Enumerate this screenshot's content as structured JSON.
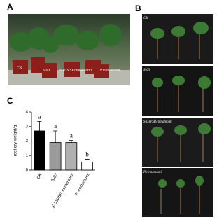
{
  "panels": {
    "a": {
      "label": "A",
      "captions": [
        "CK",
        "S-03",
        "S-03VSP.cinnamomi",
        "P.cinnamomi."
      ]
    },
    "b": {
      "label": "B",
      "captions": [
        "CK",
        "S-03",
        "S-03VSP.cinnamomi",
        "P.cinnamomi"
      ]
    },
    "c": {
      "label": "C"
    }
  },
  "chart_data": {
    "type": "bar",
    "y_label": "root dry weight/g",
    "categories": [
      "CK",
      "S-03",
      "S-03VSP. cinnamomi",
      "P. cinnamomi"
    ],
    "values": [
      2.7,
      1.9,
      1.9,
      0.55
    ],
    "errors": [
      0.65,
      0.8,
      0.15,
      0.2
    ],
    "annotations": [
      "a",
      "a",
      "a",
      "b"
    ],
    "colors": [
      "#000000",
      "#9a9a9a",
      "#b0b0b0",
      "#ffffff"
    ],
    "ylim": [
      0,
      4
    ],
    "yticks": [
      0,
      1,
      2,
      3,
      4
    ]
  }
}
